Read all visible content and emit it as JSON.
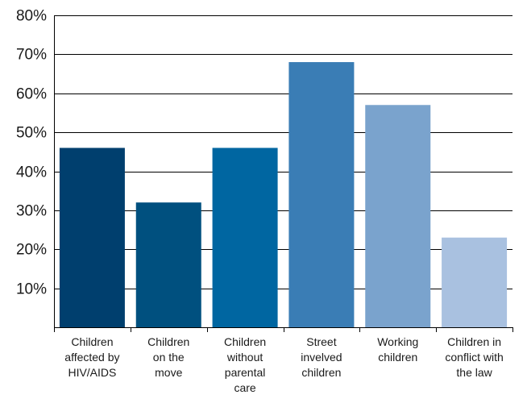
{
  "chart_data": {
    "type": "bar",
    "categories": [
      [
        "Children",
        "affected by",
        "HIV/AIDS"
      ],
      [
        "Children",
        "on the",
        "move"
      ],
      [
        "Children",
        "without",
        "parental",
        "care"
      ],
      [
        "Street",
        "invelved",
        "children"
      ],
      [
        "Working",
        "children"
      ],
      [
        "Children in",
        "conflict with",
        "the law"
      ]
    ],
    "values": [
      46,
      32,
      46,
      68,
      57,
      23
    ],
    "unit": "%",
    "ylim": [
      0,
      80
    ],
    "yticks": [
      10,
      20,
      30,
      40,
      50,
      60,
      70,
      80
    ],
    "ytick_labels": [
      "10%",
      "20%",
      "30%",
      "40%",
      "50%",
      "60%",
      "70%",
      "80%"
    ],
    "grid": true,
    "colors": [
      "#003f6e",
      "#00507f",
      "#0066a1",
      "#3a7db5",
      "#7aa3cd",
      "#a9c1e0"
    ]
  }
}
